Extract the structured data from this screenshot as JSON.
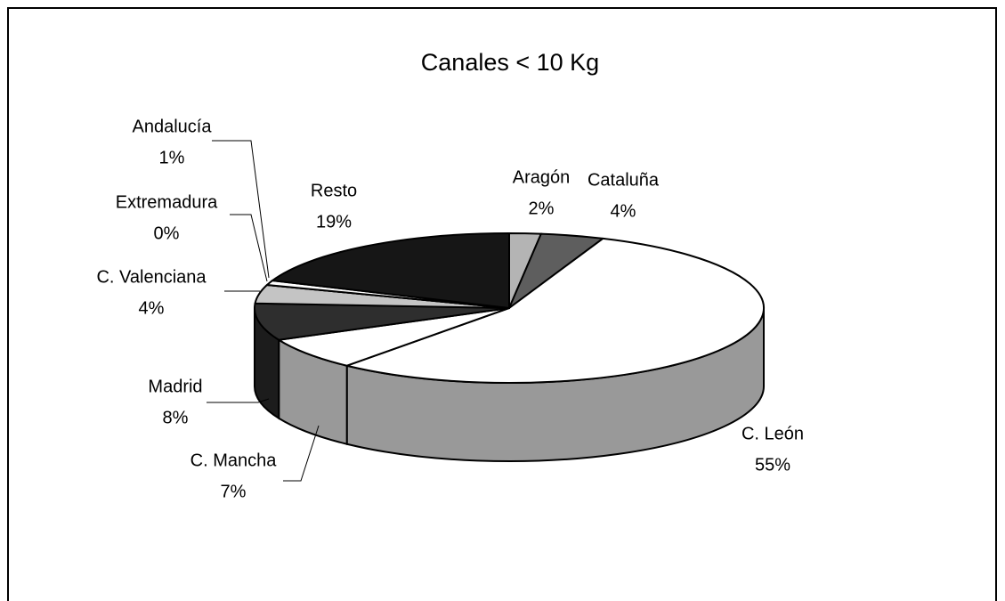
{
  "chart_data": {
    "type": "pie3d",
    "title": "Canales < 10 Kg",
    "categories": [
      "Aragón",
      "Cataluña",
      "C. León",
      "C. Mancha",
      "Madrid",
      "C. Valenciana",
      "Extremadura",
      "Andalucía",
      "Resto"
    ],
    "values": [
      2,
      4,
      55,
      7,
      8,
      4,
      0,
      1,
      19
    ],
    "value_labels": [
      "2%",
      "4%",
      "55%",
      "7%",
      "8%",
      "4%",
      "0%",
      "1%",
      "19%"
    ],
    "colors": [
      "#b4b4b4",
      "#5e5e5e",
      "#ffffff",
      "#ffffff",
      "#2e2e2e",
      "#c4c4c4",
      "#000000",
      "#ffffff",
      "#161616"
    ]
  }
}
